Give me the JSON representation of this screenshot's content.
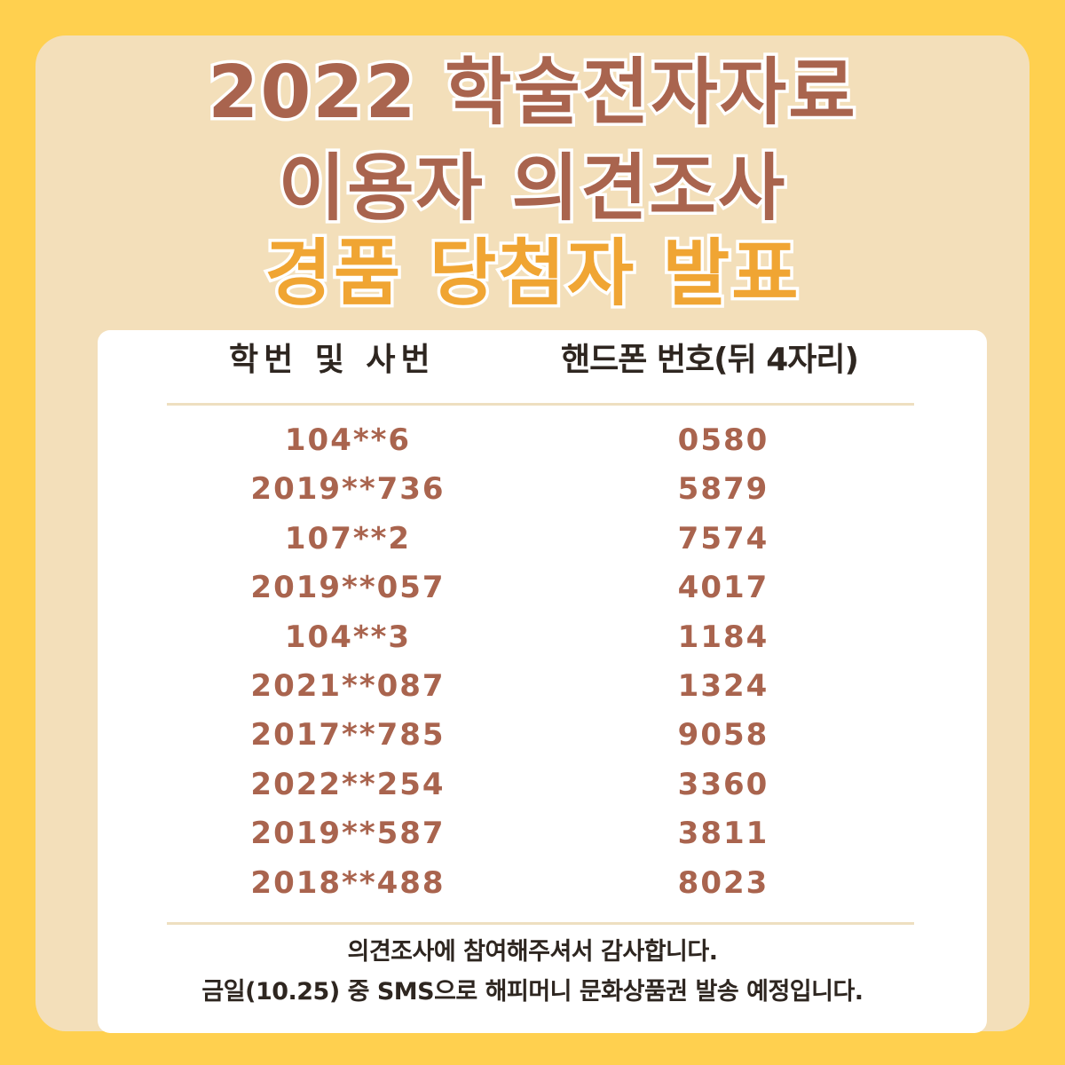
{
  "title": {
    "line1": "2022 학술전자자료",
    "line2": "이용자 의견조사",
    "line3": "경품 당첨자 발표"
  },
  "table": {
    "headers": [
      "학번 및 사번",
      "핸드폰 번호(뒤 4자리)"
    ],
    "rows": [
      {
        "id": "104**6",
        "phone": "0580"
      },
      {
        "id": "2019**736",
        "phone": "5879"
      },
      {
        "id": "107**2",
        "phone": "7574"
      },
      {
        "id": "2019**057",
        "phone": "4017"
      },
      {
        "id": "104**3",
        "phone": "1184"
      },
      {
        "id": "2021**087",
        "phone": "1324"
      },
      {
        "id": "2017**785",
        "phone": "9058"
      },
      {
        "id": "2022**254",
        "phone": "3360"
      },
      {
        "id": "2019**587",
        "phone": "3811"
      },
      {
        "id": "2018**488",
        "phone": "8023"
      }
    ]
  },
  "footer": {
    "line1": "의견조사에 참여해주셔서 감사합니다.",
    "line2": "금일(10.25) 중 SMS으로 해피머니 문화상품권 발송 예정입니다."
  },
  "colors": {
    "background": "#FFD04F",
    "panel": "#F3DFBA",
    "title_brown": "#A9644E",
    "title_orange": "#F0A533",
    "text_dark": "#2E2620"
  }
}
